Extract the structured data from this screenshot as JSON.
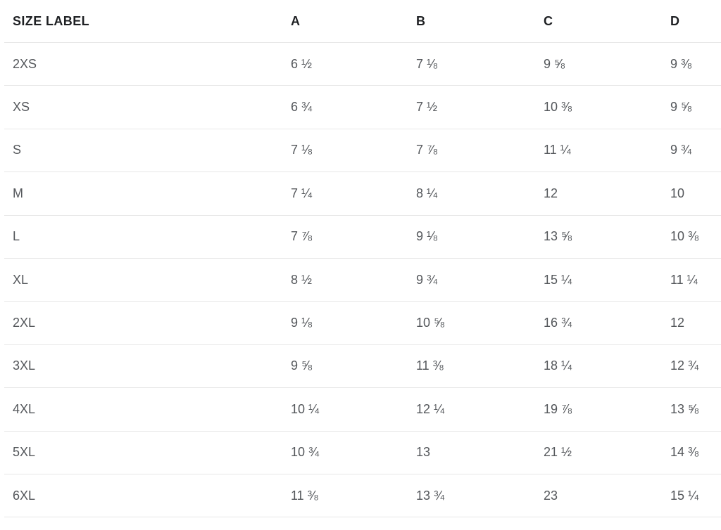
{
  "table": {
    "columns": [
      {
        "header": "SIZE LABEL"
      },
      {
        "header": "A"
      },
      {
        "header": "B"
      },
      {
        "header": "C"
      },
      {
        "header": "D"
      }
    ],
    "rows": [
      [
        "2XS",
        "6 ½",
        "7 ⅛",
        "9 ⅝",
        "9 ⅜"
      ],
      [
        "XS",
        "6 ¾",
        "7 ½",
        "10 ⅜",
        "9 ⅝"
      ],
      [
        "S",
        "7 ⅛",
        "7 ⅞",
        "11 ¼",
        "9 ¾"
      ],
      [
        "M",
        "7 ¼",
        "8 ¼",
        "12",
        "10"
      ],
      [
        "L",
        "7 ⅞",
        "9 ⅛",
        "13 ⅝",
        "10 ⅜"
      ],
      [
        "XL",
        "8 ½",
        "9 ¾",
        "15 ¼",
        "11 ¼"
      ],
      [
        "2XL",
        "9 ⅛",
        "10 ⅝",
        "16 ¾",
        "12"
      ],
      [
        "3XL",
        "9 ⅝",
        "11 ⅜",
        "18 ¼",
        "12 ¾"
      ],
      [
        "4XL",
        "10 ¼",
        "12 ¼",
        "19 ⅞",
        "13 ⅝"
      ],
      [
        "5XL",
        "10 ¾",
        "13",
        "21 ½",
        "14 ⅜"
      ],
      [
        "6XL",
        "11 ⅜",
        "13 ¾",
        "23",
        "15 ¼"
      ]
    ]
  },
  "chart_data": {
    "type": "table",
    "title": "",
    "columns": [
      "SIZE LABEL",
      "A",
      "B",
      "C",
      "D"
    ],
    "rows": [
      [
        "2XS",
        "6 ½",
        "7 ⅛",
        "9 ⅝",
        "9 ⅜"
      ],
      [
        "XS",
        "6 ¾",
        "7 ½",
        "10 ⅜",
        "9 ⅝"
      ],
      [
        "S",
        "7 ⅛",
        "7 ⅞",
        "11 ¼",
        "9 ¾"
      ],
      [
        "M",
        "7 ¼",
        "8 ¼",
        "12",
        "10"
      ],
      [
        "L",
        "7 ⅞",
        "9 ⅛",
        "13 ⅝",
        "10 ⅜"
      ],
      [
        "XL",
        "8 ½",
        "9 ¾",
        "15 ¼",
        "11 ¼"
      ],
      [
        "2XL",
        "9 ⅛",
        "10 ⅝",
        "16 ¾",
        "12"
      ],
      [
        "3XL",
        "9 ⅝",
        "11 ⅜",
        "18 ¼",
        "12 ¾"
      ],
      [
        "4XL",
        "10 ¼",
        "12 ¼",
        "19 ⅞",
        "13 ⅝"
      ],
      [
        "5XL",
        "10 ¾",
        "13",
        "21 ½",
        "14 ⅜"
      ],
      [
        "6XL",
        "11 ⅜",
        "13 ¾",
        "23",
        "15 ¼"
      ]
    ],
    "numeric_series": {
      "categories": [
        "2XS",
        "XS",
        "S",
        "M",
        "L",
        "XL",
        "2XL",
        "3XL",
        "4XL",
        "5XL",
        "6XL"
      ],
      "A": [
        6.5,
        6.75,
        7.125,
        7.25,
        7.875,
        8.5,
        9.125,
        9.625,
        10.25,
        10.75,
        11.375
      ],
      "B": [
        7.125,
        7.5,
        7.875,
        8.25,
        9.125,
        9.75,
        10.625,
        11.375,
        12.25,
        13,
        13.75
      ],
      "C": [
        9.625,
        10.375,
        11.25,
        12,
        13.625,
        15.25,
        16.75,
        18.25,
        19.875,
        21.5,
        23
      ],
      "D": [
        9.375,
        9.625,
        9.75,
        10,
        10.375,
        11.25,
        12,
        12.75,
        13.625,
        14.375,
        15.25
      ]
    }
  },
  "colors": {
    "background": "#ffffff",
    "header_text": "#1e2023",
    "body_text": "#54575b",
    "divider": "#e7e7e7"
  }
}
